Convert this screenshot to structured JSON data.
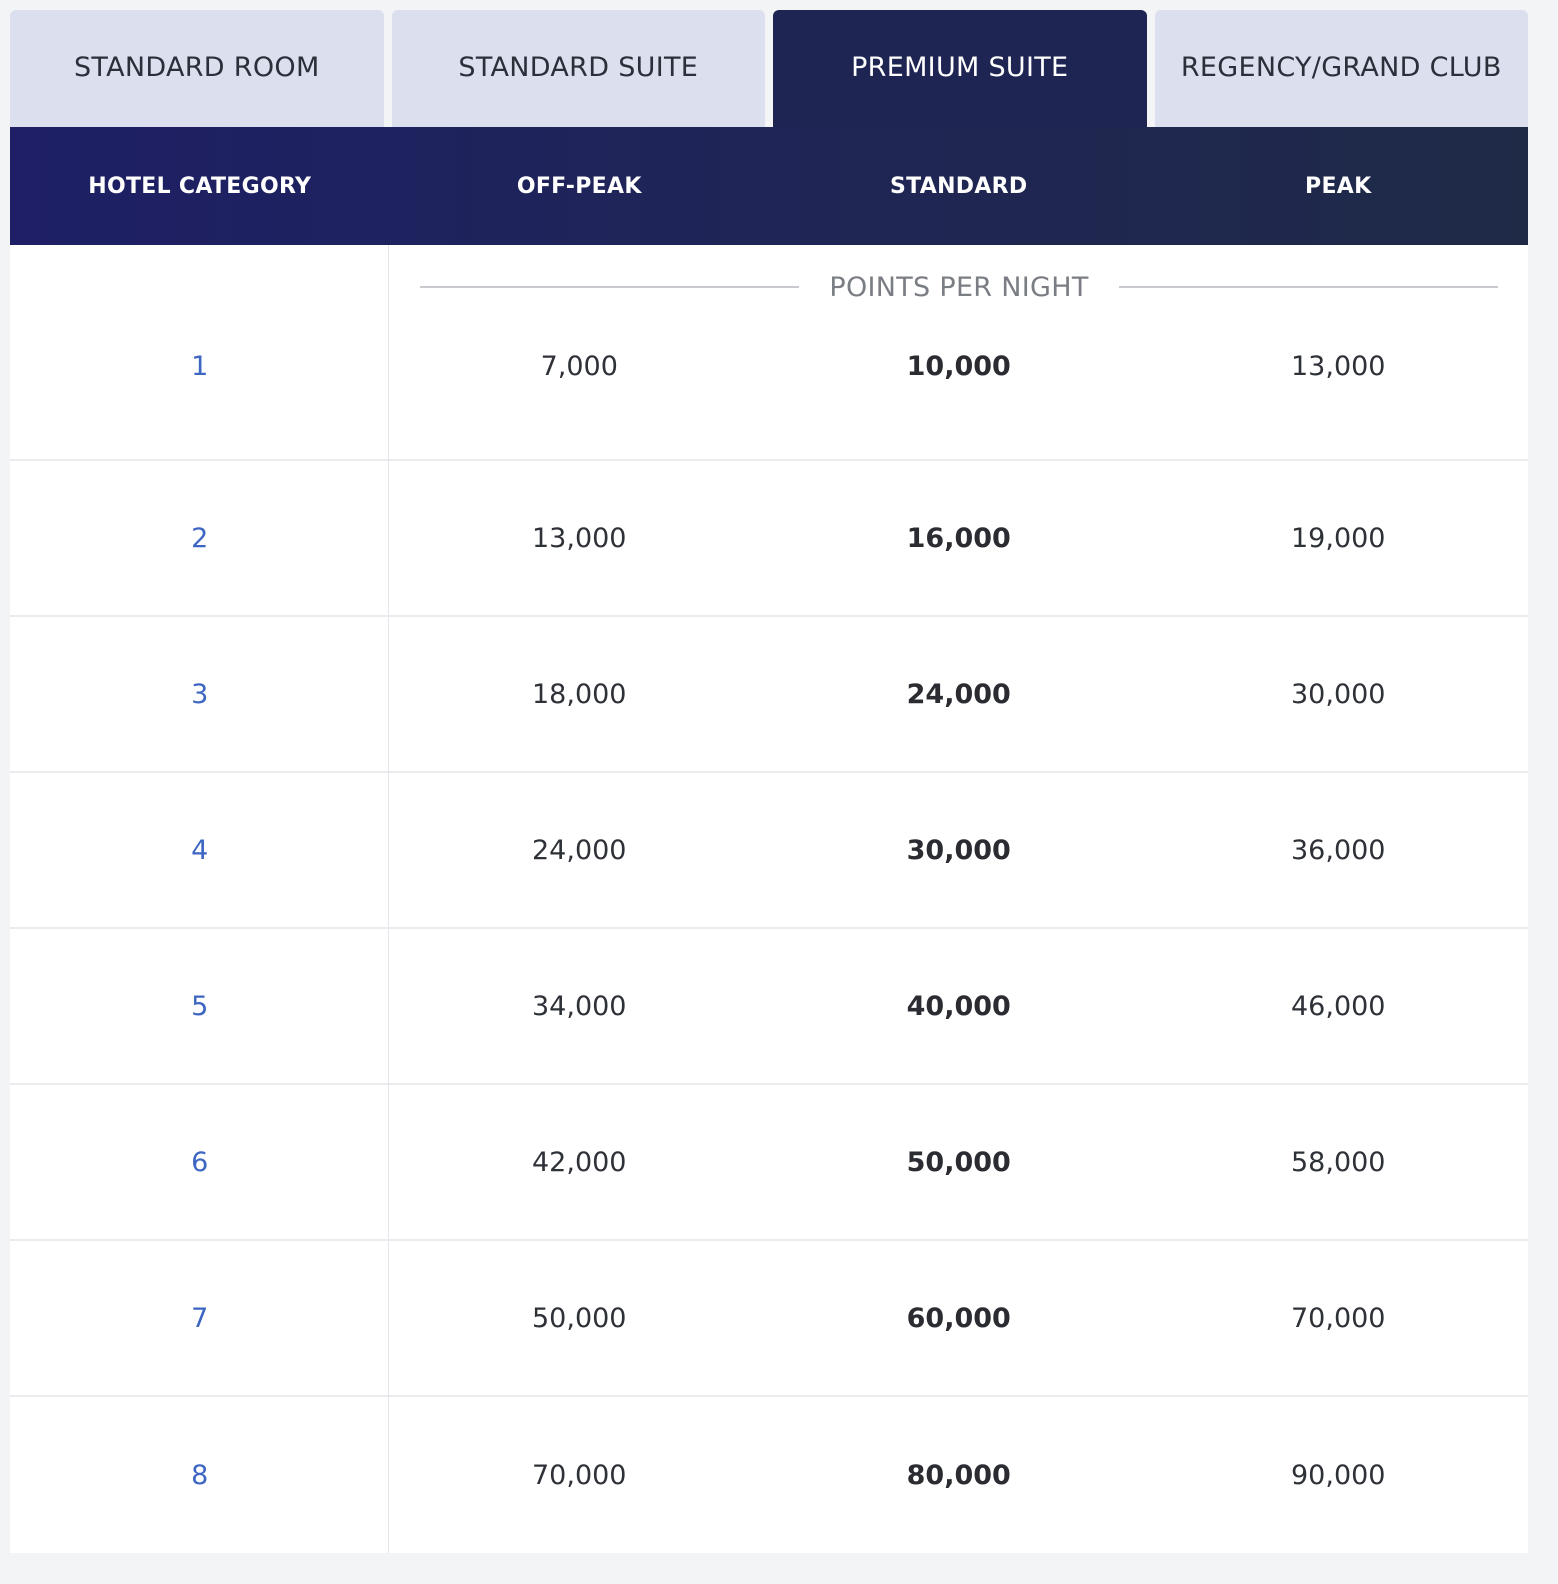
{
  "tabs": [
    {
      "label": "STANDARD ROOM",
      "active": false
    },
    {
      "label": "STANDARD SUITE",
      "active": false
    },
    {
      "label": "PREMIUM SUITE",
      "active": true
    },
    {
      "label": "REGENCY/GRAND CLUB",
      "active": false
    }
  ],
  "table": {
    "headers": [
      "HOTEL CATEGORY",
      "OFF-PEAK",
      "STANDARD",
      "PEAK"
    ],
    "subheader": "POINTS PER NIGHT",
    "rows": [
      {
        "category": "1",
        "off_peak": "7,000",
        "standard": "10,000",
        "peak": "13,000"
      },
      {
        "category": "2",
        "off_peak": "13,000",
        "standard": "16,000",
        "peak": "19,000"
      },
      {
        "category": "3",
        "off_peak": "18,000",
        "standard": "24,000",
        "peak": "30,000"
      },
      {
        "category": "4",
        "off_peak": "24,000",
        "standard": "30,000",
        "peak": "36,000"
      },
      {
        "category": "5",
        "off_peak": "34,000",
        "standard": "40,000",
        "peak": "46,000"
      },
      {
        "category": "6",
        "off_peak": "42,000",
        "standard": "50,000",
        "peak": "58,000"
      },
      {
        "category": "7",
        "off_peak": "50,000",
        "standard": "60,000",
        "peak": "70,000"
      },
      {
        "category": "8",
        "off_peak": "70,000",
        "standard": "80,000",
        "peak": "90,000"
      }
    ]
  },
  "colors": {
    "active_tab": "#1e2552",
    "inactive_tab": "#dce0ee",
    "category_link": "#3d66c2"
  }
}
